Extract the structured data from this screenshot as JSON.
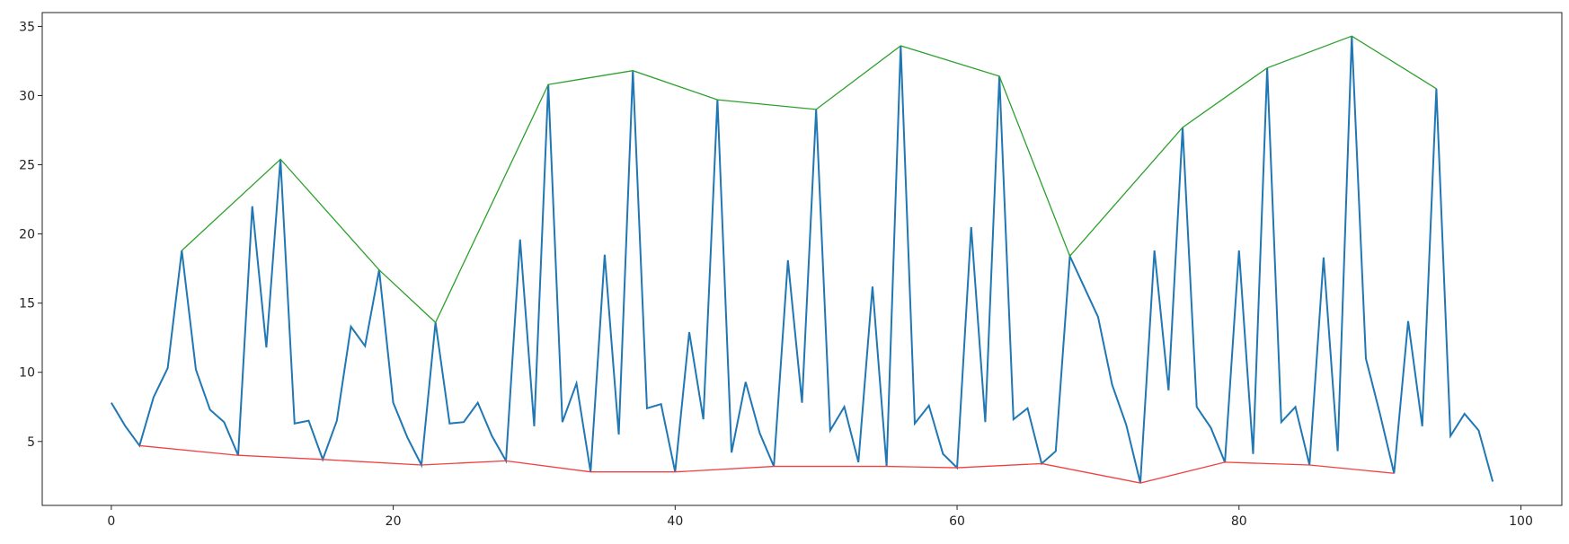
{
  "chart_data": {
    "type": "line",
    "xlim": [
      -4.9,
      102.9
    ],
    "ylim": [
      0.38,
      36.0
    ],
    "xticks": [
      0,
      20,
      40,
      60,
      80,
      100
    ],
    "yticks": [
      5,
      10,
      15,
      20,
      25,
      30,
      35
    ],
    "series": [
      {
        "color": "#1f77b4",
        "x": [
          0,
          1,
          2,
          3,
          4,
          5,
          6,
          7,
          8,
          9,
          10,
          11,
          12,
          13,
          14,
          15,
          16,
          17,
          18,
          19,
          20,
          21,
          22,
          23,
          24,
          25,
          26,
          27,
          28,
          29,
          30,
          31,
          32,
          33,
          34,
          35,
          36,
          37,
          38,
          39,
          40,
          41,
          42,
          43,
          44,
          45,
          46,
          47,
          48,
          49,
          50,
          51,
          52,
          53,
          54,
          55,
          56,
          57,
          58,
          59,
          60,
          61,
          62,
          63,
          64,
          65,
          66,
          67,
          68,
          69,
          70,
          71,
          72,
          73,
          74,
          75,
          76,
          77,
          78,
          79,
          80,
          81,
          82,
          83,
          84,
          85,
          86,
          87,
          88,
          89,
          90,
          91,
          92,
          93,
          94,
          95,
          96,
          97,
          98
        ],
        "values": [
          7.8,
          6.1,
          4.7,
          8.2,
          10.3,
          18.8,
          10.2,
          7.3,
          6.4,
          4.0,
          22.0,
          11.8,
          25.4,
          6.3,
          6.5,
          3.7,
          6.5,
          13.3,
          11.9,
          17.4,
          7.8,
          5.3,
          3.3,
          13.6,
          6.3,
          6.4,
          7.8,
          5.4,
          3.6,
          19.6,
          6.1,
          30.8,
          6.4,
          9.2,
          2.8,
          18.5,
          5.5,
          31.8,
          7.4,
          7.7,
          2.8,
          12.9,
          6.6,
          29.7,
          4.2,
          9.3,
          5.6,
          3.2,
          18.1,
          7.8,
          29.0,
          5.8,
          7.5,
          3.5,
          16.2,
          3.2,
          33.6,
          6.3,
          7.6,
          4.1,
          3.1,
          20.5,
          6.4,
          31.4,
          6.6,
          7.4,
          3.4,
          4.3,
          18.4,
          16.2,
          14.0,
          9.1,
          6.2,
          2.0,
          18.8,
          8.7,
          27.7,
          7.5,
          6.0,
          3.5,
          18.8,
          4.1,
          32.0,
          6.4,
          7.5,
          3.3,
          18.3,
          4.3,
          34.3,
          11.0,
          7.0,
          2.7,
          13.7,
          6.1,
          30.5,
          5.4,
          7.0,
          5.8,
          2.1
        ]
      },
      {
        "color": "#2ca02c",
        "x": [
          5,
          12,
          19,
          23,
          31,
          37,
          43,
          50,
          56,
          63,
          68,
          76,
          82,
          88,
          94
        ],
        "values": [
          18.8,
          25.4,
          17.4,
          13.6,
          30.8,
          31.8,
          29.7,
          29.0,
          33.6,
          31.4,
          18.4,
          27.7,
          32.0,
          34.3,
          30.5
        ]
      },
      {
        "color": "#f04040",
        "x": [
          2,
          9,
          15,
          22,
          28,
          34,
          40,
          47,
          55,
          60,
          66,
          73,
          79,
          85,
          91
        ],
        "values": [
          4.7,
          4.0,
          3.7,
          3.3,
          3.6,
          2.8,
          2.8,
          3.2,
          3.2,
          3.1,
          3.4,
          2.0,
          3.5,
          3.3,
          2.7
        ]
      }
    ]
  }
}
